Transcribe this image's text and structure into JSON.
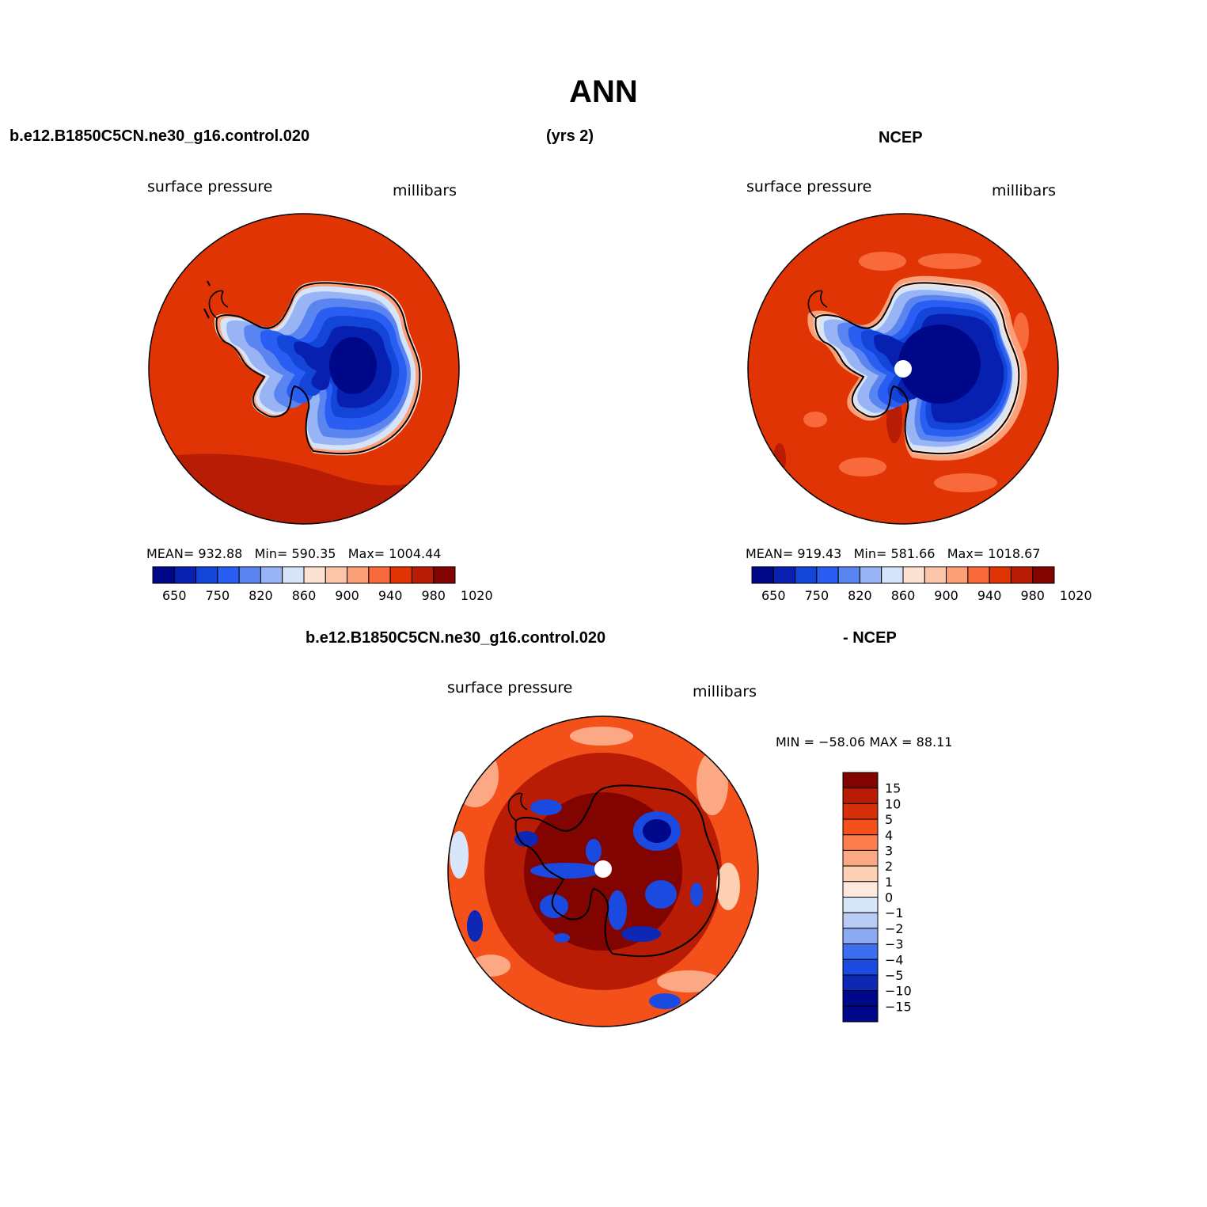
{
  "main_title": "ANN",
  "top_left_case": "b.e12.B1850C5CN.ne30_g16.control.020",
  "top_mid_years": "(yrs 2)",
  "top_right_case": "NCEP",
  "bottom_case": "b.e12.B1850C5CN.ne30_g16.control.020",
  "bottom_right_case": "- NCEP",
  "colors": {
    "pressure_palette": [
      "#00088a",
      "#0820b0",
      "#1245d8",
      "#2a5ef2",
      "#5a85f0",
      "#98b4f4",
      "#d6e4fa",
      "#fde2d2",
      "#fcc4a8",
      "#fca07a",
      "#f86a3c",
      "#e03404",
      "#b81c04",
      "#820400"
    ],
    "difference_palette": [
      "#820400",
      "#b81c04",
      "#d4300a",
      "#f4511a",
      "#fc7e4e",
      "#fca884",
      "#fdd0b4",
      "#feeadc",
      "#d8e6fa",
      "#b8ccf6",
      "#8caaf2",
      "#3c6ef2",
      "#1a4ae0",
      "#0c28b4",
      "#00088a"
    ],
    "ocean_field": "#e03404",
    "land_outline": "#000000"
  },
  "chart_data": [
    {
      "type": "heatmap",
      "title": "surface pressure",
      "units": "millibars",
      "projection": "polar stereographic (south pole)",
      "region": "Antarctica",
      "stats": {
        "mean_label": "MEAN=",
        "mean": "932.88",
        "min_label": "Min=",
        "min": "590.35",
        "max_label": "Max=",
        "max": "1004.44"
      },
      "levels": [
        650,
        750,
        820,
        860,
        900,
        940,
        980,
        1020
      ],
      "colorbar_ticks": [
        "650",
        "750",
        "820",
        "860",
        "900",
        "940",
        "980",
        "1020"
      ]
    },
    {
      "type": "heatmap",
      "title": "surface pressure",
      "units": "millibars",
      "projection": "polar stereographic (south pole)",
      "region": "Antarctica",
      "stats": {
        "mean_label": "MEAN=",
        "mean": "919.43",
        "min_label": "Min=",
        "min": "581.66",
        "max_label": "Max=",
        "max": "1018.67"
      },
      "levels": [
        650,
        750,
        820,
        860,
        900,
        940,
        980,
        1020
      ],
      "colorbar_ticks": [
        "650",
        "750",
        "820",
        "860",
        "900",
        "940",
        "980",
        "1020"
      ]
    },
    {
      "type": "heatmap",
      "title": "surface pressure",
      "units": "millibars",
      "projection": "polar stereographic (south pole)",
      "region": "Antarctica",
      "stats_text": "MIN = −58.06 MAX =  88.11",
      "stats": {
        "min": -58.06,
        "max": 88.11
      },
      "levels": [
        15,
        10,
        5,
        4,
        3,
        2,
        1,
        0,
        -1,
        -2,
        -3,
        -4,
        -5,
        -10,
        -15
      ],
      "colorbar_ticks": [
        "15",
        "10",
        "5",
        "4",
        "3",
        "2",
        "1",
        "0",
        "−1",
        "−2",
        "−3",
        "−4",
        "−5",
        "−10",
        "−15"
      ]
    }
  ]
}
